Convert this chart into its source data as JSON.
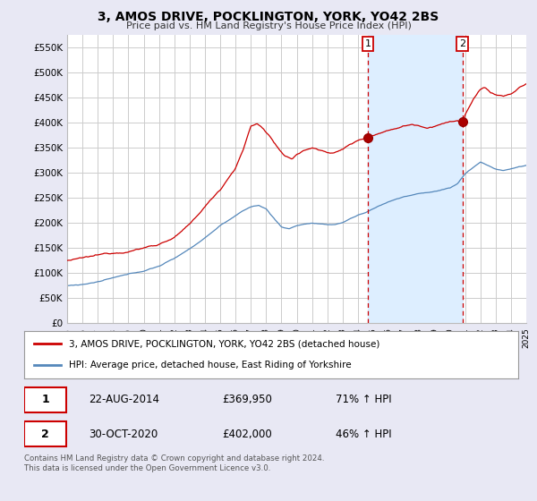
{
  "title": "3, AMOS DRIVE, POCKLINGTON, YORK, YO42 2BS",
  "subtitle": "Price paid vs. HM Land Registry's House Price Index (HPI)",
  "red_line_color": "#cc0000",
  "blue_line_color": "#5588bb",
  "bg_color": "#e8e8f4",
  "plot_bg_color": "#ffffff",
  "shade_color": "#ddeeff",
  "grid_color": "#cccccc",
  "legend_label_red": "3, AMOS DRIVE, POCKLINGTON, YORK, YO42 2BS (detached house)",
  "legend_label_blue": "HPI: Average price, detached house, East Riding of Yorkshire",
  "transaction1_date": "22-AUG-2014",
  "transaction1_price": "£369,950",
  "transaction1_hpi": "71% ↑ HPI",
  "transaction2_date": "30-OCT-2020",
  "transaction2_price": "£402,000",
  "transaction2_hpi": "46% ↑ HPI",
  "footer": "Contains HM Land Registry data © Crown copyright and database right 2024.\nThis data is licensed under the Open Government Licence v3.0.",
  "vline1_x": 2014.64,
  "vline2_x": 2020.83,
  "marker1_y": 369950,
  "marker2_y": 402000,
  "xmin": 1995,
  "xmax": 2025,
  "ylim": [
    0,
    575000
  ],
  "yticks": [
    0,
    50000,
    100000,
    150000,
    200000,
    250000,
    300000,
    350000,
    400000,
    450000,
    500000,
    550000
  ],
  "ytick_labels": [
    "£0",
    "£50K",
    "£100K",
    "£150K",
    "£200K",
    "£250K",
    "£300K",
    "£350K",
    "£400K",
    "£450K",
    "£500K",
    "£550K"
  ]
}
